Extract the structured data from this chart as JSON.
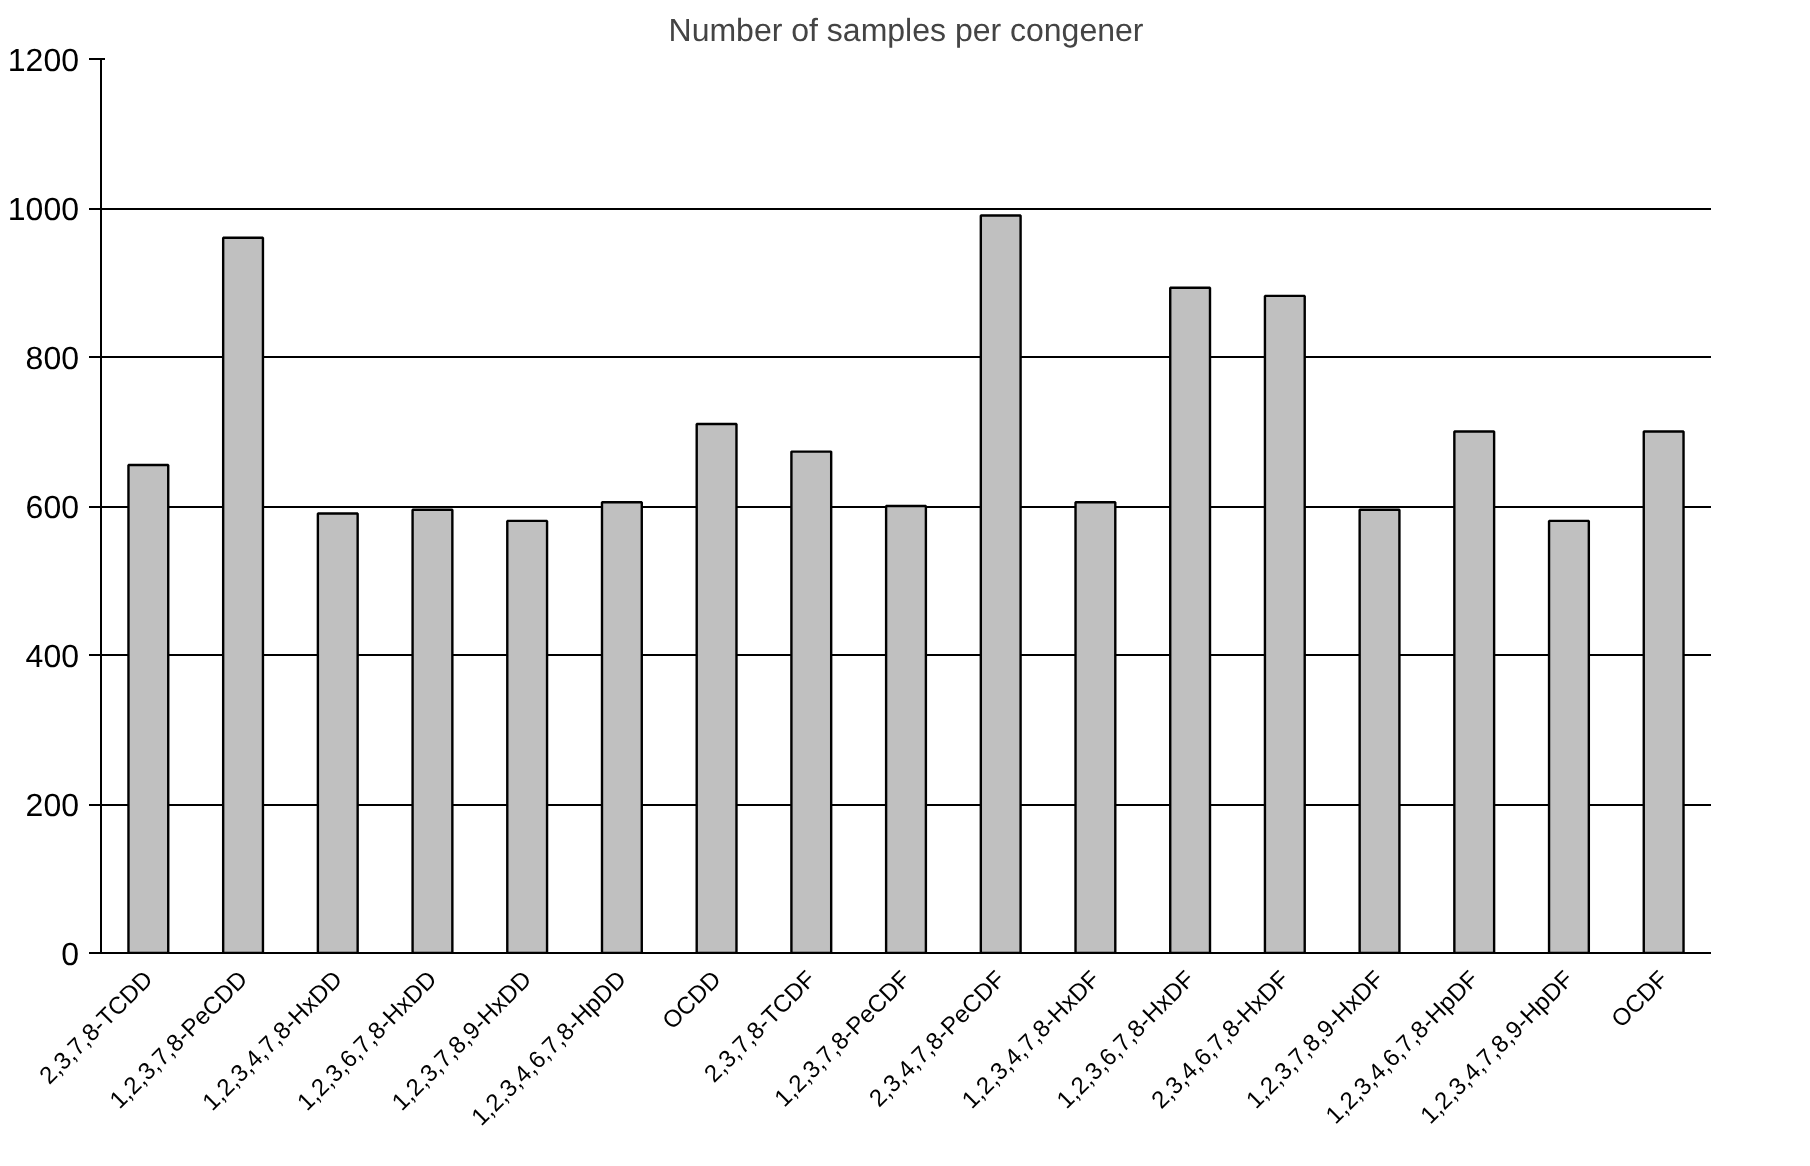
{
  "chart_data": {
    "type": "bar",
    "title": "Number of samples per congener",
    "categories": [
      "2,3,7,8-TCDD",
      "1,2,3,7,8-PeCDD",
      "1,2,3,4,7,8-HxDD",
      "1,2,3,6,7,8-HxDD",
      "1,2,3,7,8,9-HxDD",
      "1,2,3,4,6,7,8-HpDD",
      "OCDD",
      "2,3,7,8-TCDF",
      "1,2,3,7,8-PeCDF",
      "2,3,4,7,8-PeCDF",
      "1,2,3,4,7,8-HxDF",
      "1,2,3,6,7,8-HxDF",
      "2,3,4,6,7,8-HxDF",
      "1,2,3,7,8,9-HxDF",
      "1,2,3,4,6,7,8-HpDF",
      "1,2,3,4,7,8,9-HpDF",
      "OCDF"
    ],
    "values": [
      655,
      960,
      590,
      595,
      580,
      605,
      710,
      673,
      600,
      990,
      605,
      893,
      882,
      595,
      700,
      580,
      700
    ],
    "color": "#c0c0c0",
    "ylim": [
      0,
      1200
    ],
    "yticks": [
      0,
      200,
      400,
      600,
      800,
      1000,
      1200
    ],
    "grid": "y"
  }
}
